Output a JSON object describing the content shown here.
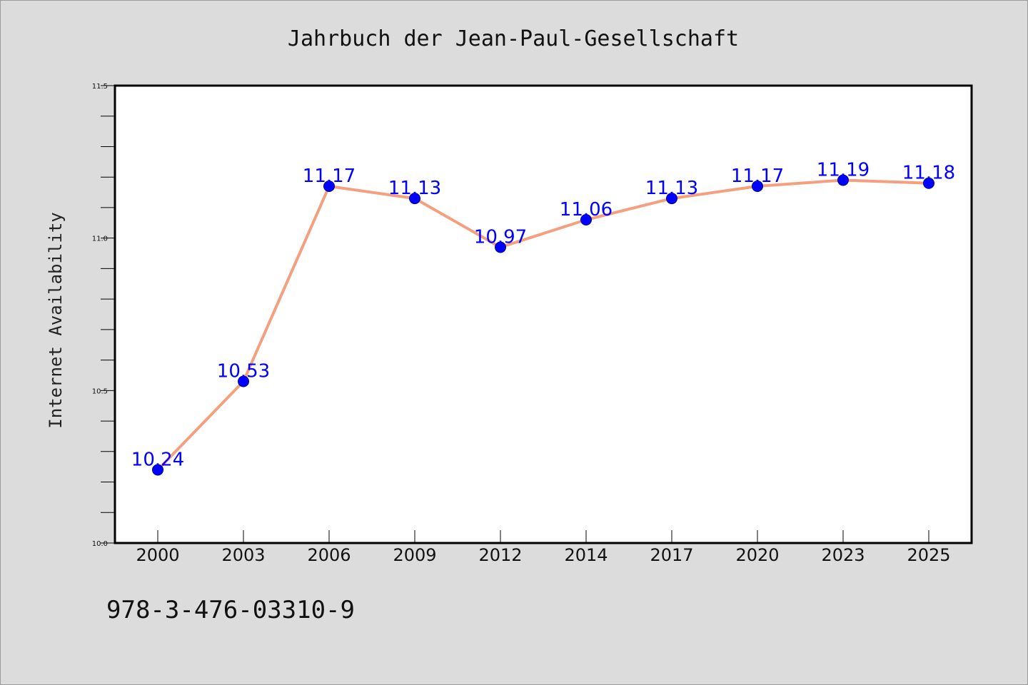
{
  "colors": {
    "background": "#dcdcdc",
    "plot_background": "#ffffff",
    "line": "#f4a07e",
    "marker": "#0000ff",
    "data_label": "#0000ff",
    "axis": "#000000"
  },
  "footer": {
    "isbn": "978-3-476-03310-9"
  },
  "chart_data": {
    "type": "line",
    "title": "Jahrbuch der Jean-Paul-Gesellschaft",
    "xlabel": "",
    "ylabel": "Internet Availability",
    "categories": [
      "2000",
      "2003",
      "2006",
      "2009",
      "2012",
      "2014",
      "2017",
      "2020",
      "2023",
      "2025"
    ],
    "series": [
      {
        "values": [
          10.24,
          10.53,
          11.17,
          11.13,
          10.97,
          11.06,
          11.13,
          11.17,
          11.19,
          11.18
        ]
      }
    ],
    "data_labels": [
      "10.24",
      "10.53",
      "11.17",
      "11.13",
      "10.97",
      "11.06",
      "11.13",
      "11.17",
      "11.19",
      "11.18"
    ],
    "ylim": [
      10.0,
      11.5
    ],
    "yticks": [
      "10.0",
      "10.5",
      "11.0",
      "11.5"
    ],
    "grid": false,
    "legend": "none"
  }
}
